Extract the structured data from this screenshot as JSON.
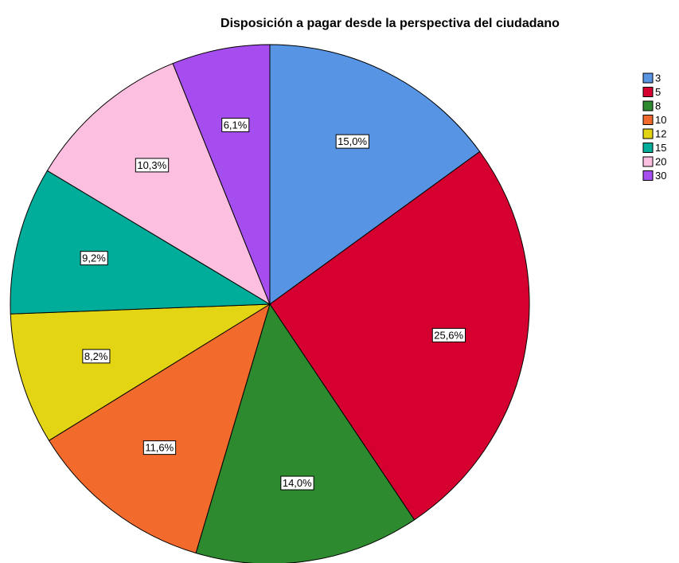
{
  "chart_data": {
    "type": "pie",
    "title": "Disposición a pagar desde la perspectiva del ciudadano",
    "categories": [
      "3",
      "5",
      "8",
      "10",
      "12",
      "15",
      "20",
      "30"
    ],
    "values": [
      15.0,
      25.6,
      14.0,
      11.6,
      8.2,
      9.2,
      10.3,
      6.1
    ],
    "value_labels": [
      "15,0%",
      "25,6%",
      "14,0%",
      "11,6%",
      "8,2%",
      "9,2%",
      "10,3%",
      "6,1%"
    ],
    "colors": [
      "#5794e3",
      "#d5002f",
      "#2e8a2e",
      "#f26a2c",
      "#e3d414",
      "#00ad9a",
      "#fdbfdf",
      "#a64df0"
    ],
    "legend": "right"
  }
}
